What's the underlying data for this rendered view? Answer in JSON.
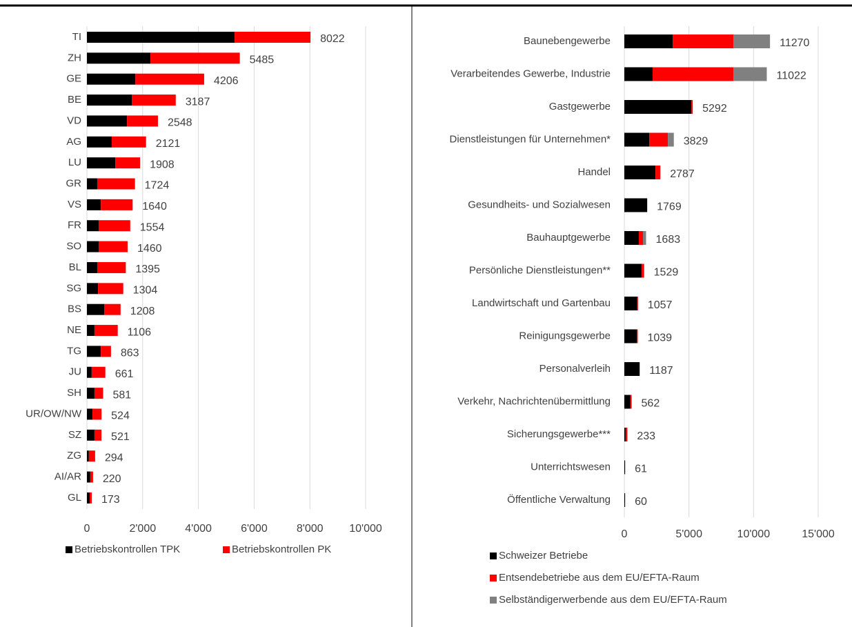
{
  "chart_data": [
    {
      "type": "bar",
      "orientation": "horizontal",
      "stacked": true,
      "categories": [
        "TI",
        "ZH",
        "GE",
        "BE",
        "VD",
        "AG",
        "LU",
        "GR",
        "VS",
        "FR",
        "SO",
        "BL",
        "SG",
        "BS",
        "NE",
        "TG",
        "JU",
        "SH",
        "UR/OW/NW",
        "SZ",
        "ZG",
        "AI/AR",
        "GL"
      ],
      "series": [
        {
          "name": "Betriebskontrollen TPK",
          "color": "#000000",
          "values": [
            5300,
            2280,
            1740,
            1610,
            1440,
            890,
            1020,
            370,
            500,
            420,
            420,
            370,
            400,
            620,
            270,
            500,
            170,
            270,
            200,
            270,
            70,
            120,
            100
          ]
        },
        {
          "name": "Betriebskontrollen PK",
          "color": "#ff0000",
          "values": [
            2722,
            3205,
            2466,
            1577,
            1108,
            1231,
            888,
            1354,
            1140,
            1134,
            1040,
            1025,
            904,
            588,
            836,
            363,
            491,
            311,
            324,
            251,
            224,
            100,
            73
          ]
        }
      ],
      "totals": [
        8022,
        5485,
        4206,
        3187,
        2548,
        2121,
        1908,
        1724,
        1640,
        1554,
        1460,
        1395,
        1304,
        1208,
        1106,
        863,
        661,
        581,
        524,
        521,
        294,
        220,
        173
      ],
      "xlim": [
        0,
        10000
      ],
      "xticks": [
        0,
        {
          "value": 2000,
          "label": "2'000"
        },
        {
          "value": 4000,
          "label": "4'000"
        },
        {
          "value": 6000,
          "label": "6'000"
        },
        {
          "value": 8000,
          "label": "8'000"
        },
        {
          "value": 10000,
          "label": "10'000"
        }
      ],
      "grid": true,
      "legend": "bottom"
    },
    {
      "type": "bar",
      "orientation": "horizontal",
      "stacked": true,
      "categories": [
        "Baunebengewerbe",
        "Verarbeitendes Gewerbe, Industrie",
        "Gastgewerbe",
        "Dienstleistungen für Unternehmen*",
        "Handel",
        "Gesundheits- und Sozialwesen",
        "Bauhauptgewerbe",
        "Persönliche Dienstleistungen**",
        "Landwirtschaft  und Gartenbau",
        "Reinigungsgewerbe",
        "Personalverleih",
        "Verkehr, Nachrichtenübermittlung",
        "Sicherungsgewerbe***",
        "Unterrichtswesen",
        "Öffentliche Verwaltung"
      ],
      "series": [
        {
          "name": "Schweizer Betriebe",
          "color": "#000000",
          "values": [
            3740,
            2190,
            5190,
            1930,
            2410,
            1769,
            1120,
            1340,
            1000,
            960,
            1187,
            470,
            100,
            61,
            60
          ]
        },
        {
          "name": "Entsendebetriebe aus dem EU/EFTA-Raum",
          "color": "#ff0000",
          "values": [
            4710,
            6260,
            102,
            1440,
            377,
            0,
            320,
            189,
            57,
            79,
            0,
            92,
            133,
            0,
            0
          ]
        },
        {
          "name": "Selbständigerwerbende aus dem EU/EFTA-Raum",
          "color": "#808080",
          "values": [
            2820,
            2572,
            0,
            459,
            0,
            0,
            243,
            0,
            0,
            0,
            0,
            0,
            0,
            0,
            0
          ]
        }
      ],
      "totals": [
        11270,
        11022,
        5292,
        3829,
        2787,
        1769,
        1683,
        1529,
        1057,
        1039,
        1187,
        562,
        233,
        61,
        60
      ],
      "xlim": [
        0,
        15000
      ],
      "xticks": [
        0,
        {
          "value": 5000,
          "label": "5'000"
        },
        {
          "value": 10000,
          "label": "10'000"
        },
        {
          "value": 15000,
          "label": "15'000"
        }
      ],
      "grid": true,
      "legend": "bottom"
    }
  ]
}
